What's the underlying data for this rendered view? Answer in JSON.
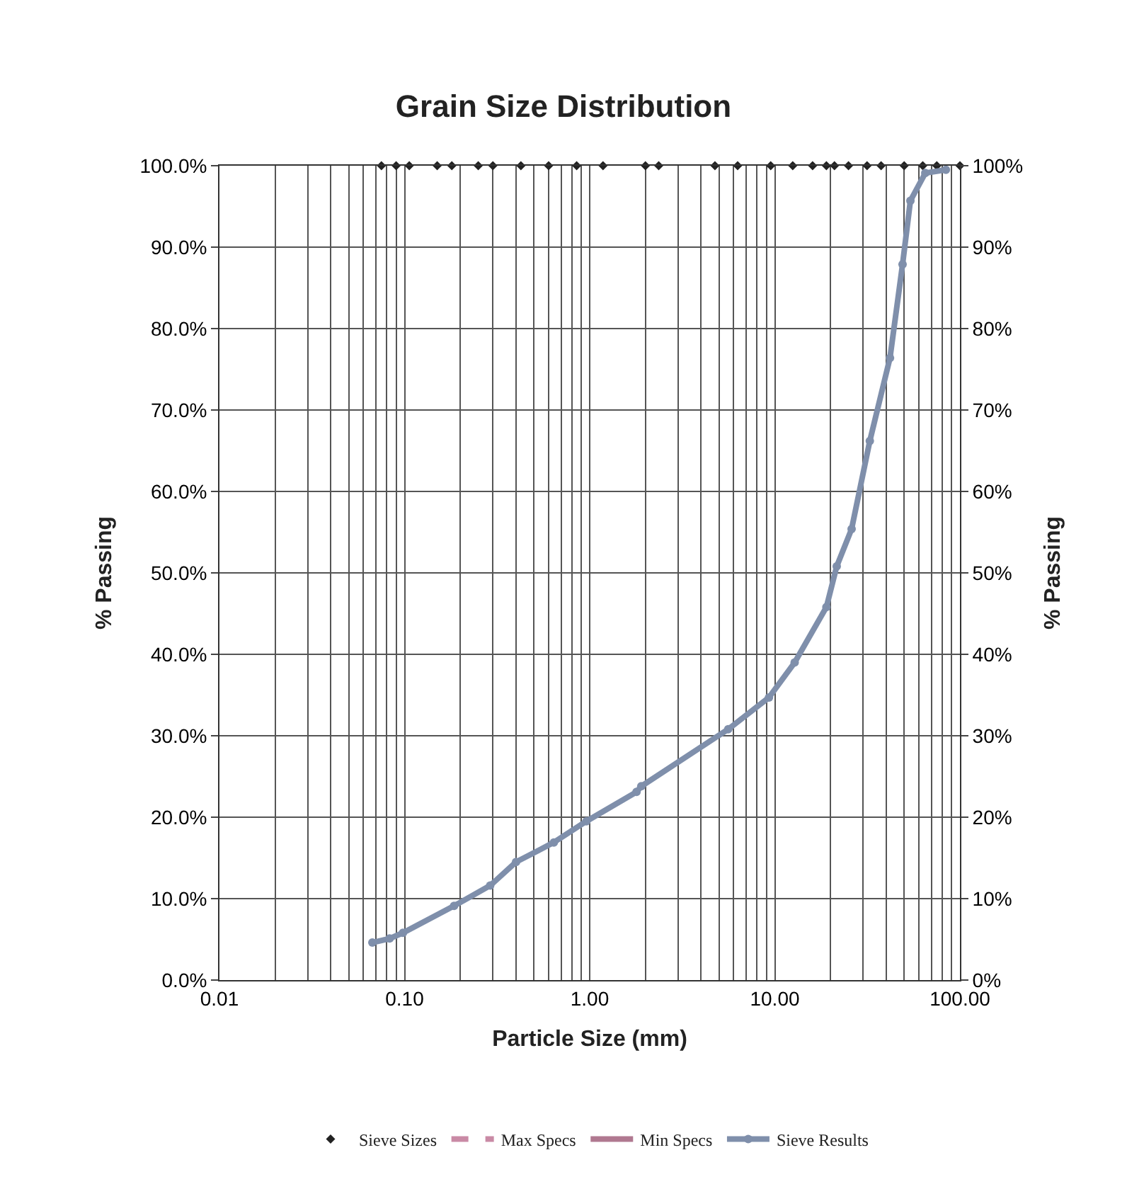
{
  "chart_data": {
    "type": "line",
    "title": "Grain Size Distribution",
    "xlabel": "Particle Size (mm)",
    "ylabel": "% Passing",
    "y2label": "% Passing",
    "log": "x",
    "grid": true,
    "legend": "bottom",
    "marker": "circle",
    "xlim": [
      0.01,
      100
    ],
    "xticks": [
      {
        "value": 0.01,
        "label": "0.01"
      },
      {
        "value": 0.1,
        "label": "0.10"
      },
      {
        "value": 1,
        "label": "1.00"
      },
      {
        "value": 10,
        "label": "10.00"
      },
      {
        "value": 100,
        "label": "100.00"
      }
    ],
    "ylim": [
      0,
      100
    ],
    "yticks": [
      {
        "value": 0,
        "label": "0.0%"
      },
      {
        "value": 10,
        "label": "10.0%"
      },
      {
        "value": 20,
        "label": "20.0%"
      },
      {
        "value": 30,
        "label": "30.0%"
      },
      {
        "value": 40,
        "label": "40.0%"
      },
      {
        "value": 50,
        "label": "50.0%"
      },
      {
        "value": 60,
        "label": "60.0%"
      },
      {
        "value": 70,
        "label": "70.0%"
      },
      {
        "value": 80,
        "label": "80.0%"
      },
      {
        "value": 90,
        "label": "90.0%"
      },
      {
        "value": 100,
        "label": "100.0%"
      }
    ],
    "y2lim": [
      0,
      100
    ],
    "y2ticks": [
      {
        "value": 0,
        "label": "0%"
      },
      {
        "value": 10,
        "label": "10%"
      },
      {
        "value": 20,
        "label": "20%"
      },
      {
        "value": 30,
        "label": "30%"
      },
      {
        "value": 40,
        "label": "40%"
      },
      {
        "value": 50,
        "label": "50%"
      },
      {
        "value": 60,
        "label": "60%"
      },
      {
        "value": 70,
        "label": "70%"
      },
      {
        "value": 80,
        "label": "80%"
      },
      {
        "value": 90,
        "label": "90%"
      },
      {
        "value": 100,
        "label": "100%"
      }
    ],
    "series": [
      {
        "name": "Sieve Sizes",
        "type": "scatter",
        "marker": "diamond",
        "color": "#222222",
        "x": [
          0.075,
          0.09,
          0.106,
          0.15,
          0.18,
          0.25,
          0.3,
          0.425,
          0.6,
          0.85,
          1.18,
          2.0,
          2.36,
          4.75,
          6.3,
          9.5,
          12.5,
          16,
          19,
          21,
          25,
          31.5,
          37.5,
          50,
          63,
          75,
          100
        ],
        "values": [
          100,
          100,
          100,
          100,
          100,
          100,
          100,
          100,
          100,
          100,
          100,
          100,
          100,
          100,
          100,
          100,
          100,
          100,
          100,
          100,
          100,
          100,
          100,
          100,
          100,
          100,
          100
        ]
      },
      {
        "name": "Max Specs",
        "marker": "none",
        "line_style": "dashed",
        "color": "#c98aa5",
        "x": [
          null
        ],
        "values": [
          null
        ]
      },
      {
        "name": "Min Specs",
        "marker": "none",
        "line_style": "solid",
        "color": "#b07890",
        "x": [
          null
        ],
        "values": [
          null
        ]
      },
      {
        "name": "Sieve Results",
        "color": "#7f8fab",
        "x": [
          0.067,
          0.083,
          0.098,
          0.185,
          0.29,
          0.4,
          0.64,
          0.96,
          1.79,
          1.9,
          5.6,
          9.3,
          12.8,
          19,
          21.6,
          26,
          32.6,
          41.9,
          49,
          54,
          65,
          84
        ],
        "values": [
          4.6,
          5.1,
          5.8,
          9.1,
          11.6,
          14.5,
          16.9,
          19.5,
          23.1,
          23.8,
          30.8,
          34.7,
          39,
          45.8,
          50.8,
          55.4,
          66.2,
          76.4,
          87.9,
          95.7,
          99.1,
          99.5
        ]
      }
    ]
  }
}
